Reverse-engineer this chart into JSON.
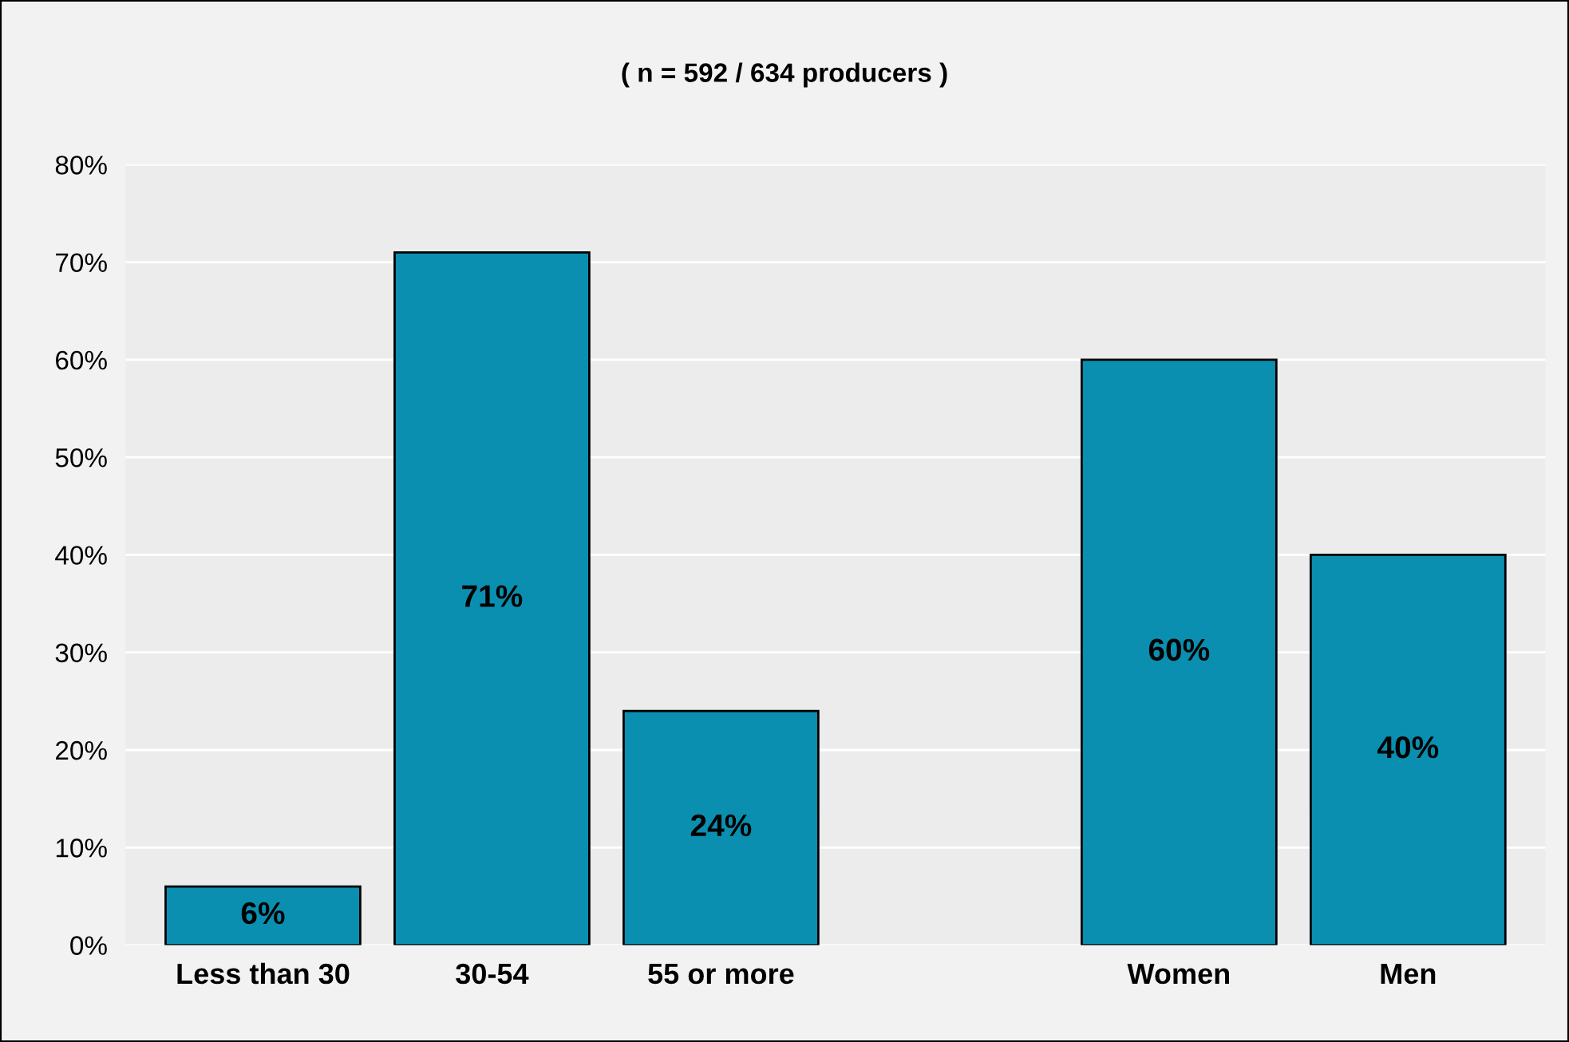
{
  "chart_data": {
    "type": "bar",
    "title": "( n = 592 / 634 producers )",
    "categories": [
      "Less than 30",
      "30-54",
      "55 or more",
      null,
      "Women",
      "Men"
    ],
    "values": [
      6,
      71,
      24,
      null,
      60,
      40
    ],
    "color": "#0a8fb0",
    "ylim": [
      0,
      80
    ],
    "yticks": [
      {
        "value": 0,
        "label": "0%"
      },
      {
        "value": 10,
        "label": "10%"
      },
      {
        "value": 20,
        "label": "20%"
      },
      {
        "value": 30,
        "label": "30%"
      },
      {
        "value": 40,
        "label": "40%"
      },
      {
        "value": 50,
        "label": "50%"
      },
      {
        "value": 60,
        "label": "60%"
      },
      {
        "value": 70,
        "label": "70%"
      },
      {
        "value": 80,
        "label": "80%"
      }
    ],
    "value_labels": [
      "6%",
      "71%",
      "24%",
      null,
      "60%",
      "40%"
    ],
    "grid": "y"
  }
}
